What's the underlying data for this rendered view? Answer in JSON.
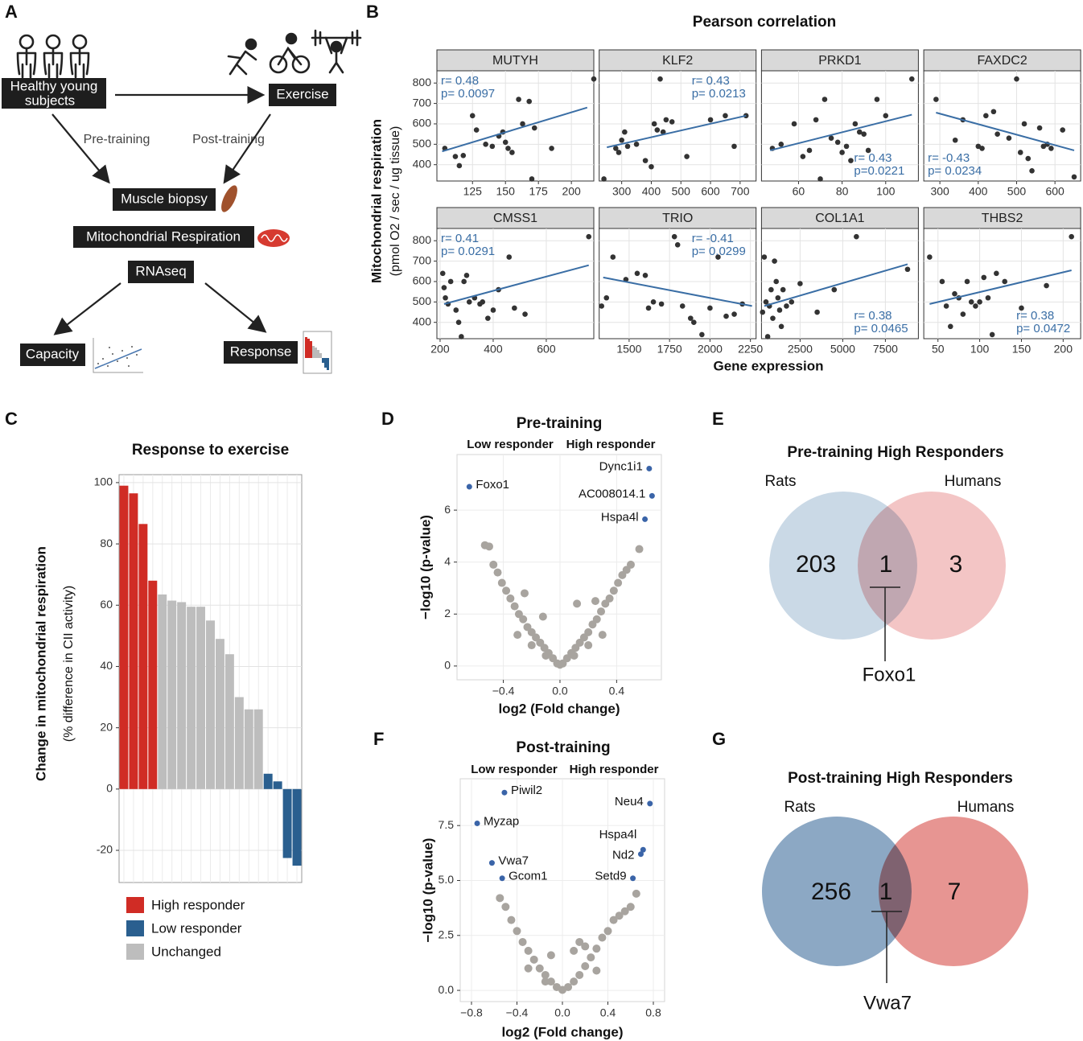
{
  "panel_labels": [
    "A",
    "B",
    "C",
    "D",
    "E",
    "F",
    "G"
  ],
  "diagram": {
    "nodes": {
      "subjects": [
        "Healthy young",
        "subjects"
      ],
      "exercise": "Exercise",
      "biopsy": "Muscle biopsy",
      "respiration": "Mitochondrial Respiration",
      "rnaseq": "RNAseq",
      "capacity": "Capacity",
      "response": "Response"
    },
    "edges": [
      "Pre-training",
      "Post-training"
    ]
  },
  "chart_data": [
    {
      "type": "facet_scatter",
      "title": "Pearson correlation",
      "xlabel": "Gene expression",
      "ylabel": [
        "Mitochondrial respiration",
        "(pmol O2 / sec / ug tissue)"
      ],
      "ylim": [
        320,
        860
      ],
      "yticks": [
        400,
        500,
        600,
        700,
        800
      ],
      "point_color": "#333333",
      "fit_color": "#3a6ea5",
      "grid": true,
      "panels": [
        {
          "title": "MUTYH",
          "annotation": [
            "r= 0.48",
            "p= 0.0097"
          ],
          "annotation_corner": "top-left",
          "xlim": [
            98,
            217
          ],
          "xticks": [
            125,
            150,
            175,
            200
          ],
          "x": [
            104,
            112,
            115,
            118,
            125,
            128,
            135,
            140,
            145,
            148,
            150,
            152,
            155,
            160,
            163,
            168,
            170,
            172,
            185,
            217
          ],
          "y": [
            480,
            440,
            395,
            445,
            640,
            570,
            500,
            490,
            540,
            560,
            510,
            480,
            460,
            720,
            600,
            710,
            330,
            580,
            480,
            820
          ],
          "fit": {
            "x": [
              102,
              212
            ],
            "y": [
              465,
              680
            ]
          }
        },
        {
          "title": "KLF2",
          "annotation": [
            "r= 0.43",
            "p= 0.0213"
          ],
          "annotation_corner": "top-right",
          "xlim": [
            224,
            754
          ],
          "xticks": [
            300,
            400,
            500,
            600,
            700
          ],
          "x": [
            240,
            280,
            290,
            300,
            310,
            320,
            350,
            380,
            400,
            410,
            420,
            430,
            440,
            450,
            470,
            520,
            600,
            650,
            680,
            720
          ],
          "y": [
            330,
            480,
            460,
            520,
            560,
            490,
            500,
            420,
            390,
            600,
            570,
            820,
            560,
            620,
            610,
            440,
            620,
            640,
            490,
            640
          ],
          "fit": {
            "x": [
              250,
              720
            ],
            "y": [
              485,
              640
            ]
          }
        },
        {
          "title": "PRKD1",
          "annotation": [
            "r= 0.43",
            "p=0.0221"
          ],
          "annotation_corner": "bottom-right",
          "xlim": [
            43,
            115
          ],
          "xticks": [
            60,
            80,
            100
          ],
          "x": [
            48,
            52,
            58,
            62,
            65,
            68,
            70,
            72,
            75,
            78,
            80,
            82,
            84,
            86,
            88,
            90,
            92,
            96,
            100,
            112
          ],
          "y": [
            480,
            500,
            600,
            440,
            470,
            620,
            330,
            720,
            530,
            510,
            460,
            490,
            420,
            600,
            560,
            550,
            470,
            720,
            640,
            820
          ],
          "fit": {
            "x": [
              47,
              112
            ],
            "y": [
              470,
              645
            ]
          }
        },
        {
          "title": "FAXDC2",
          "annotation": [
            "r= -0.43",
            "p= 0.0234"
          ],
          "annotation_corner": "bottom-left",
          "xlim": [
            258,
            667
          ],
          "xticks": [
            300,
            400,
            500,
            600
          ],
          "x": [
            290,
            340,
            360,
            400,
            410,
            420,
            440,
            450,
            480,
            500,
            510,
            520,
            530,
            540,
            560,
            570,
            580,
            590,
            620,
            650
          ],
          "y": [
            720,
            520,
            620,
            490,
            480,
            640,
            660,
            550,
            530,
            820,
            460,
            600,
            430,
            370,
            580,
            490,
            500,
            480,
            570,
            340
          ],
          "fit": {
            "x": [
              290,
              650
            ],
            "y": [
              655,
              470
            ]
          }
        },
        {
          "title": "CMSS1",
          "annotation": [
            "r= 0.41",
            "p= 0.0291"
          ],
          "annotation_corner": "top-left",
          "xlim": [
            188,
            779
          ],
          "xticks": [
            200,
            400,
            600
          ],
          "x": [
            210,
            215,
            220,
            230,
            240,
            260,
            270,
            280,
            290,
            300,
            310,
            330,
            350,
            360,
            380,
            400,
            420,
            460,
            480,
            520,
            760
          ],
          "y": [
            640,
            570,
            520,
            490,
            600,
            460,
            400,
            330,
            600,
            630,
            500,
            520,
            490,
            500,
            420,
            460,
            560,
            720,
            470,
            440,
            820
          ],
          "fit": {
            "x": [
              215,
              760
            ],
            "y": [
              490,
              680
            ]
          }
        },
        {
          "title": "TRIO",
          "annotation": [
            "r= -0.41",
            "p= 0.0299"
          ],
          "annotation_corner": "top-right",
          "xlim": [
            1315,
            2285
          ],
          "xticks": [
            1500,
            1750,
            2000,
            2250
          ],
          "x": [
            1330,
            1360,
            1400,
            1480,
            1550,
            1600,
            1620,
            1650,
            1700,
            1780,
            1800,
            1830,
            1880,
            1900,
            1950,
            2000,
            2050,
            2100,
            2150,
            2200
          ],
          "y": [
            480,
            520,
            720,
            610,
            640,
            630,
            470,
            500,
            490,
            820,
            780,
            480,
            420,
            400,
            340,
            470,
            720,
            430,
            440,
            490
          ],
          "fit": {
            "x": [
              1340,
              2260
            ],
            "y": [
              620,
              480
            ]
          }
        },
        {
          "title": "COL1A1",
          "annotation": [
            "r= 0.38",
            "p= 0.0465"
          ],
          "annotation_corner": "bottom-right",
          "xlim": [
            236,
            9434
          ],
          "xticks": [
            2500,
            5000,
            7500
          ],
          "x": [
            300,
            400,
            500,
            600,
            700,
            800,
            900,
            1000,
            1100,
            1200,
            1300,
            1400,
            1500,
            1700,
            2000,
            2500,
            3500,
            4500,
            5800,
            8800
          ],
          "y": [
            450,
            720,
            500,
            330,
            480,
            560,
            420,
            700,
            600,
            520,
            460,
            380,
            560,
            480,
            500,
            590,
            450,
            560,
            820,
            660
          ],
          "fit": {
            "x": [
              400,
              8800
            ],
            "y": [
              480,
              685
            ]
          }
        },
        {
          "title": "THBS2",
          "annotation": [
            "r= 0.38",
            "p= 0.0472"
          ],
          "annotation_corner": "bottom-right",
          "xlim": [
            33,
            221
          ],
          "xticks": [
            50,
            100,
            150,
            200
          ],
          "x": [
            40,
            55,
            60,
            65,
            70,
            75,
            80,
            85,
            90,
            95,
            100,
            105,
            110,
            115,
            120,
            130,
            150,
            180,
            210
          ],
          "y": [
            720,
            600,
            480,
            380,
            540,
            520,
            440,
            600,
            500,
            480,
            500,
            620,
            520,
            340,
            640,
            600,
            470,
            580,
            820
          ],
          "fit": {
            "x": [
              40,
              210
            ],
            "y": [
              490,
              655
            ]
          }
        }
      ]
    },
    {
      "type": "bar",
      "title": "Response to exercise",
      "ylabel": [
        "Change in mitochondrial respiration",
        "(% difference in CII activity)"
      ],
      "ylim": [
        -30.5,
        102.6
      ],
      "yticks": [
        -20,
        0,
        20,
        40,
        60,
        80,
        100
      ],
      "grid": true,
      "categories": [
        null,
        null,
        null,
        null,
        null,
        null,
        null,
        null,
        null,
        null,
        null,
        null,
        null,
        null,
        null,
        null,
        null,
        null,
        null
      ],
      "series": [
        {
          "name": "High responder",
          "color": "#d02c25",
          "values": [
            99,
            96.5,
            86.5,
            68,
            null,
            null,
            null,
            null,
            null,
            null,
            null,
            null,
            null,
            null,
            null,
            null,
            null,
            null,
            null
          ]
        },
        {
          "name": "Low responder",
          "color": "#2a5f8f",
          "values": [
            null,
            null,
            null,
            null,
            null,
            null,
            null,
            null,
            null,
            null,
            null,
            null,
            null,
            null,
            null,
            5,
            2.5,
            -22.5,
            -25
          ]
        },
        {
          "name": "Unchanged",
          "color": "#bdbdbd",
          "values": [
            null,
            null,
            null,
            null,
            63.5,
            61.5,
            61,
            59.5,
            59.5,
            55,
            49,
            44,
            30,
            26,
            26,
            null,
            null,
            null,
            null
          ]
        }
      ]
    },
    {
      "type": "volcano",
      "title": "Pre-training",
      "annotations": [
        "Low responder",
        "High responder"
      ],
      "xlabel": "log2 (Fold change)",
      "ylabel": "−log10 (p-value)",
      "xlim": [
        -0.727,
        0.716
      ],
      "ylim": [
        -0.53,
        8.14
      ],
      "xticks": [
        {
          "value": -0.4,
          "label": "−0.4"
        },
        {
          "value": 0,
          "label": "0.0"
        },
        0.4
      ],
      "yticks": [
        0,
        2,
        4,
        6
      ],
      "grid": true,
      "point_color": "#a8a49f",
      "highlight_color": "#3a64a8",
      "points": {
        "x": [
          -0.53,
          -0.5,
          -0.47,
          -0.44,
          -0.41,
          -0.38,
          -0.35,
          -0.32,
          -0.29,
          -0.26,
          -0.23,
          -0.2,
          -0.17,
          -0.14,
          -0.11,
          -0.08,
          -0.05,
          -0.02,
          0.02,
          0.05,
          0.08,
          0.11,
          0.14,
          0.17,
          0.2,
          0.23,
          0.26,
          0.29,
          0.32,
          0.35,
          0.38,
          0.41,
          0.44,
          0.47,
          0.5,
          0.56,
          -0.3,
          -0.2,
          -0.1,
          0.1,
          0.2,
          0.3,
          -0.25,
          0.25,
          0,
          0.12,
          -0.12
        ],
        "y": [
          4.65,
          4.6,
          3.9,
          3.6,
          3.2,
          2.9,
          2.6,
          2.3,
          2.0,
          1.8,
          1.5,
          1.3,
          1.1,
          0.9,
          0.7,
          0.5,
          0.3,
          0.1,
          0.1,
          0.3,
          0.5,
          0.7,
          0.9,
          1.1,
          1.3,
          1.6,
          1.8,
          2.1,
          2.4,
          2.6,
          2.9,
          3.2,
          3.5,
          3.7,
          3.9,
          4.5,
          1.2,
          0.8,
          0.4,
          0.4,
          0.8,
          1.2,
          2.8,
          2.5,
          0.05,
          2.4,
          1.9
        ]
      },
      "highlight": {
        "names": [
          "Foxo1",
          "Dync1i1",
          "AC008014.1",
          "Hspa4l"
        ],
        "x": [
          -0.64,
          0.63,
          0.65,
          0.6
        ],
        "y": [
          6.9,
          7.6,
          6.55,
          5.65
        ]
      }
    },
    {
      "type": "volcano",
      "title": "Post-training",
      "annotations": [
        "Low responder",
        "High responder"
      ],
      "xlabel": "log2 (Fold change)",
      "ylabel": "−log10 (p-value)",
      "xlim": [
        -0.899,
        0.899
      ],
      "ylim": [
        -0.51,
        9.63
      ],
      "xticks": [
        {
          "value": -0.8,
          "label": "−0.8"
        },
        {
          "value": -0.4,
          "label": "−0.4"
        },
        {
          "value": 0,
          "label": "0.0"
        },
        0.4,
        0.8
      ],
      "yticks": [
        {
          "value": 0,
          "label": "0.0"
        },
        2.5,
        {
          "value": 5,
          "label": "5.0"
        },
        7.5
      ],
      "grid": true,
      "point_color": "#a8a49f",
      "highlight_color": "#3a64a8",
      "points": {
        "x": [
          -0.55,
          -0.5,
          -0.45,
          -0.4,
          -0.35,
          -0.3,
          -0.25,
          -0.2,
          -0.15,
          -0.1,
          -0.05,
          0,
          0.05,
          0.1,
          0.15,
          0.2,
          0.25,
          0.3,
          0.35,
          0.4,
          0.45,
          0.5,
          0.55,
          0.6,
          0.65,
          -0.3,
          -0.15,
          0.15,
          0.3,
          0.1,
          -0.1,
          0.2
        ],
        "y": [
          4.2,
          3.8,
          3.2,
          2.7,
          2.2,
          1.8,
          1.4,
          1.0,
          0.7,
          0.4,
          0.15,
          0.02,
          0.15,
          0.4,
          0.7,
          1.1,
          1.5,
          1.9,
          2.4,
          2.7,
          3.2,
          3.4,
          3.6,
          3.8,
          4.4,
          1.0,
          0.4,
          2.2,
          0.9,
          1.8,
          1.6,
          2.0
        ]
      },
      "highlight": {
        "names": [
          "Piwil2",
          "Myzap",
          "Vwa7",
          "Gcom1",
          "Neu4",
          "Hspa4l",
          "Nd2",
          "Setd9"
        ],
        "x": [
          -0.51,
          -0.75,
          -0.62,
          -0.53,
          0.77,
          0.71,
          0.69,
          0.62
        ],
        "y": [
          9.0,
          7.6,
          5.8,
          5.1,
          8.5,
          6.4,
          6.2,
          5.1
        ]
      }
    },
    {
      "type": "venn",
      "title": "Pre-training High Responders",
      "sets": [
        {
          "name": "Rats",
          "count": 203,
          "color": "#c5d5e4"
        },
        {
          "name": "Humans",
          "count": 3,
          "color": "#f2bfbf"
        }
      ],
      "intersection": 1,
      "annotation": "Foxo1"
    },
    {
      "type": "venn",
      "title": "Post-training High Responders",
      "sets": [
        {
          "name": "Rats",
          "count": 256,
          "color": "#809fbe"
        },
        {
          "name": "Humans",
          "count": 7,
          "color": "#e58a86"
        }
      ],
      "intersection": 1,
      "annotation": "Vwa7"
    }
  ]
}
